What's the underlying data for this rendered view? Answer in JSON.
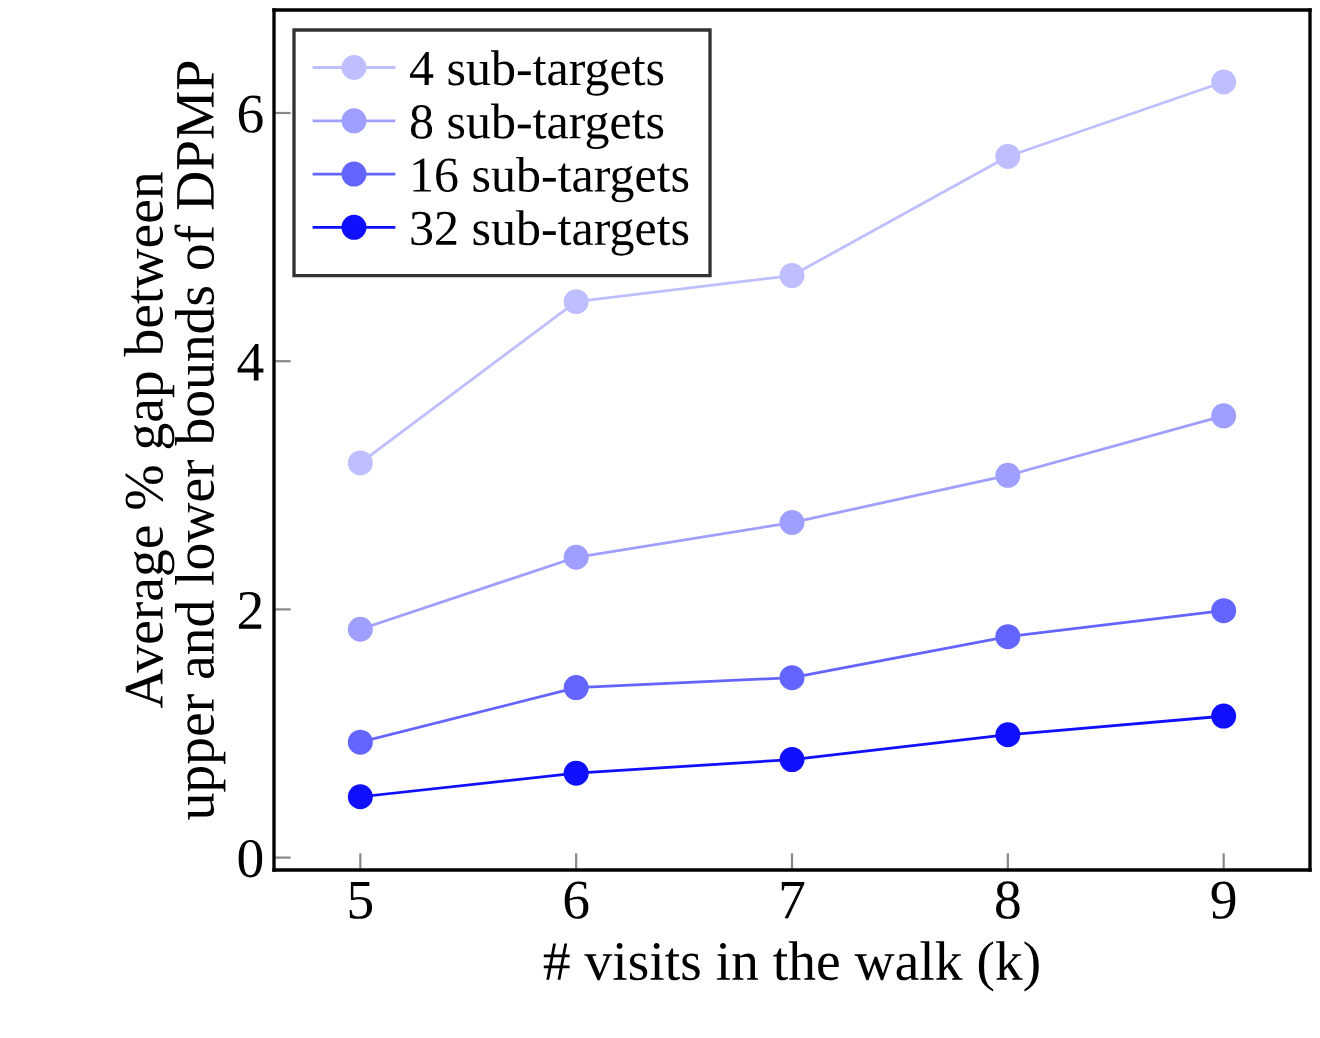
{
  "chart_data": {
    "type": "line",
    "xlabel": "# visits in the walk (k)",
    "ylabel": "Average % gap between\nupper and lower bounds of DPMP",
    "x": [
      5,
      6,
      7,
      8,
      9
    ],
    "series": [
      {
        "name": "4 sub-targets",
        "color": "#bfbfff",
        "values": [
          3.18,
          4.48,
          4.69,
          5.65,
          6.25
        ]
      },
      {
        "name": "8 sub-targets",
        "color": "#9f9fff",
        "values": [
          1.84,
          2.42,
          2.7,
          3.08,
          3.56
        ]
      },
      {
        "name": "16 sub-targets",
        "color": "#6464ff",
        "values": [
          0.93,
          1.37,
          1.45,
          1.78,
          1.99
        ]
      },
      {
        "name": "32 sub-targets",
        "color": "#1010ff",
        "values": [
          0.49,
          0.68,
          0.79,
          0.99,
          1.14
        ]
      }
    ],
    "xlim": [
      4.6,
      9.4
    ],
    "ylim": [
      -0.1,
      6.83
    ],
    "xticks": [
      5,
      6,
      7,
      8,
      9
    ],
    "yticks": [
      0,
      2,
      4,
      6
    ],
    "grid": false,
    "legend": "top left",
    "marker": "circle",
    "line_style": "solid"
  }
}
